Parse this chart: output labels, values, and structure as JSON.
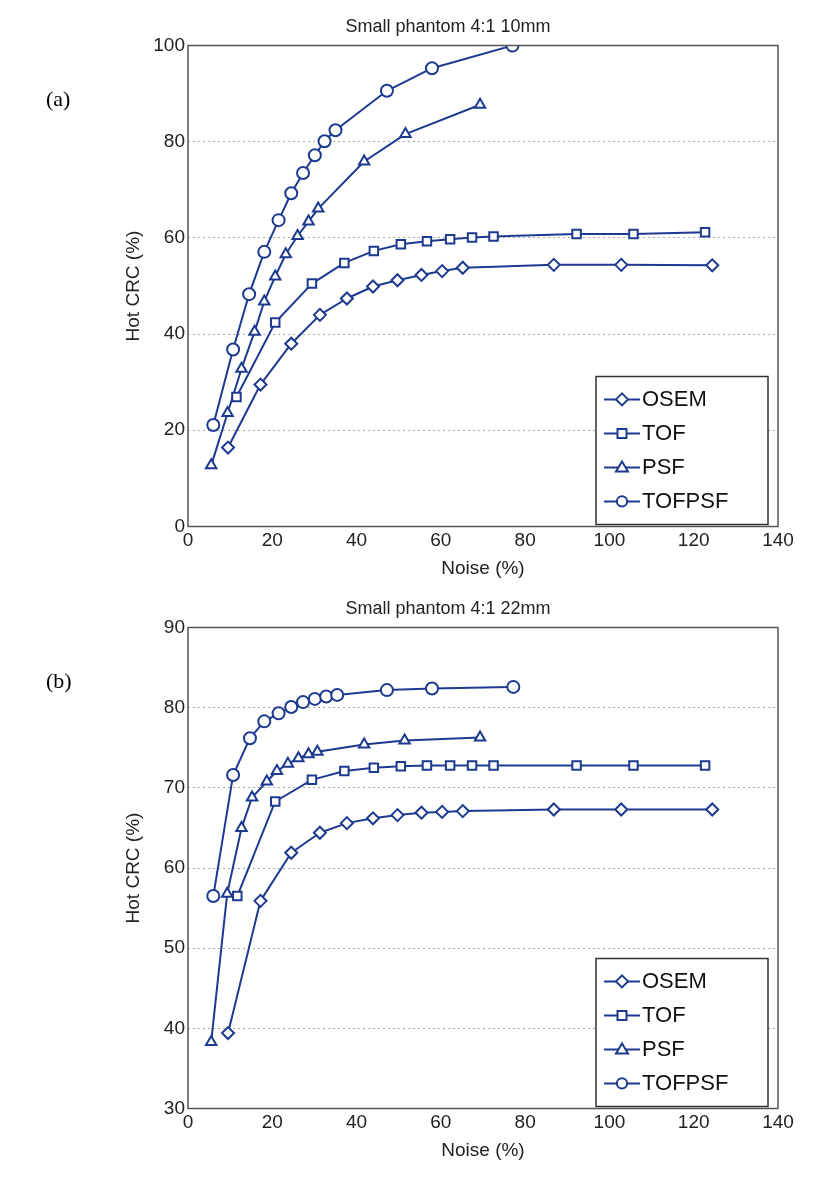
{
  "chart_data": [
    {
      "type": "line",
      "title": "Small phantom 4:1 10mm",
      "xlabel": "Noise (%)",
      "ylabel": "Hot CRC (%)",
      "annotations": [
        "(a)"
      ],
      "xlim": [
        0,
        140
      ],
      "xticks": [
        0,
        20,
        40,
        60,
        80,
        100,
        120,
        140
      ],
      "ylim": [
        0,
        100
      ],
      "yticks": [
        0,
        20,
        40,
        60,
        80,
        100
      ],
      "grid": "y",
      "legend": "bottom right",
      "line_style": "solid",
      "series": [
        {
          "name": "OSEM",
          "color": "#1c3a8f",
          "marker": "diamond",
          "x": [
            9.5,
            17.2,
            24.5,
            31.3,
            37.7,
            43.9,
            49.7,
            55.4,
            60.3,
            65.2,
            86.8,
            102.8,
            124.4
          ],
          "values": [
            16.4,
            29.5,
            38.0,
            44.0,
            47.4,
            49.9,
            51.2,
            52.3,
            53.1,
            53.8,
            54.4,
            54.4,
            54.3
          ]
        },
        {
          "name": "TOF",
          "color": "#1c3a8f",
          "marker": "square",
          "x": [
            11.5,
            20.7,
            29.4,
            37.1,
            44.1,
            50.5,
            56.7,
            62.2,
            67.4,
            72.5,
            92.2,
            105.7,
            122.7
          ],
          "values": [
            26.9,
            42.4,
            50.5,
            54.8,
            57.3,
            58.7,
            59.3,
            59.7,
            60.1,
            60.3,
            60.8,
            60.8,
            61.2
          ]
        },
        {
          "name": "PSF",
          "color": "#1c3a8f",
          "marker": "triangle",
          "x": [
            5.5,
            9.4,
            12.7,
            15.8,
            18.1,
            20.7,
            23.2,
            26.0,
            28.6,
            30.9,
            41.8,
            51.6,
            69.3
          ],
          "values": [
            12.7,
            23.6,
            32.8,
            40.5,
            46.8,
            52.0,
            56.6,
            60.4,
            63.4,
            66.1,
            75.9,
            81.6,
            87.7
          ]
        },
        {
          "name": "TOFPSF",
          "color": "#1c3a8f",
          "marker": "circle",
          "x": [
            6.0,
            10.7,
            14.5,
            18.1,
            21.5,
            24.5,
            27.3,
            30.1,
            32.4,
            35.0,
            47.2,
            57.9,
            77.0
          ],
          "values": [
            21.1,
            36.8,
            48.3,
            57.1,
            63.7,
            69.3,
            73.5,
            77.2,
            80.1,
            82.4,
            90.6,
            95.3,
            100
          ]
        }
      ]
    },
    {
      "type": "line",
      "title": "Small phantom 4:1 22mm",
      "xlabel": "Noise (%)",
      "ylabel": "Hot CRC (%)",
      "annotations": [
        "(b)"
      ],
      "xlim": [
        0,
        140
      ],
      "xticks": [
        0,
        20,
        40,
        60,
        80,
        100,
        120,
        140
      ],
      "ylim": [
        30,
        90
      ],
      "yticks": [
        30,
        40,
        50,
        60,
        70,
        80,
        90
      ],
      "grid": "y",
      "legend": "bottom right",
      "line_style": "solid",
      "series": [
        {
          "name": "OSEM",
          "color": "#1c3a8f",
          "marker": "diamond",
          "x": [
            9.5,
            17.2,
            24.5,
            31.3,
            37.7,
            43.9,
            49.7,
            55.4,
            60.3,
            65.2,
            86.8,
            102.8,
            124.4
          ],
          "values": [
            39.4,
            55.9,
            61.9,
            64.4,
            65.6,
            66.2,
            66.6,
            66.9,
            67.0,
            67.1,
            67.3,
            67.3,
            67.3
          ]
        },
        {
          "name": "TOF",
          "color": "#1c3a8f",
          "marker": "square",
          "x": [
            11.7,
            20.7,
            29.4,
            37.1,
            44.1,
            50.5,
            56.7,
            62.2,
            67.4,
            72.5,
            92.2,
            105.7,
            122.7
          ],
          "values": [
            56.5,
            68.3,
            71.0,
            72.1,
            72.5,
            72.7,
            72.8,
            72.8,
            72.8,
            72.8,
            72.8,
            72.8,
            72.8
          ]
        },
        {
          "name": "PSF",
          "color": "#1c3a8f",
          "marker": "triangle",
          "x": [
            5.5,
            9.3,
            12.7,
            15.2,
            18.7,
            21.1,
            23.7,
            26.2,
            28.6,
            30.7,
            41.8,
            51.4,
            69.3
          ],
          "values": [
            38.3,
            56.8,
            65.0,
            68.8,
            70.8,
            72.1,
            73.0,
            73.7,
            74.2,
            74.5,
            75.4,
            75.9,
            76.3
          ]
        },
        {
          "name": "TOFPSF",
          "color": "#1c3a8f",
          "marker": "circle",
          "x": [
            6.0,
            10.7,
            14.7,
            18.1,
            21.5,
            24.5,
            27.3,
            30.1,
            32.8,
            35.4,
            47.2,
            57.9,
            77.2
          ],
          "values": [
            56.5,
            71.6,
            76.2,
            78.3,
            79.3,
            80.1,
            80.7,
            81.1,
            81.4,
            81.6,
            82.2,
            82.4,
            82.6
          ]
        }
      ]
    }
  ]
}
